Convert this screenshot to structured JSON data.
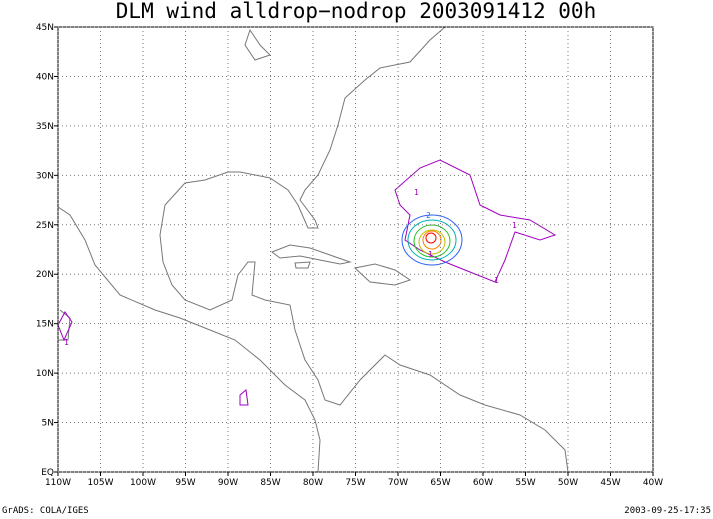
{
  "map": {
    "title": "DLM wind alldrop−nodrop 2003091412 00h",
    "xlim": [
      -110,
      -40
    ],
    "ylim": [
      0,
      45
    ],
    "xticks": [
      {
        "value": -110,
        "label": "110W"
      },
      {
        "value": -105,
        "label": "105W"
      },
      {
        "value": -100,
        "label": "100W"
      },
      {
        "value": -95,
        "label": "95W"
      },
      {
        "value": -90,
        "label": "90W"
      },
      {
        "value": -85,
        "label": "85W"
      },
      {
        "value": -80,
        "label": "80W"
      },
      {
        "value": -75,
        "label": "75W"
      },
      {
        "value": -70,
        "label": "70W"
      },
      {
        "value": -65,
        "label": "65W"
      },
      {
        "value": -60,
        "label": "60W"
      },
      {
        "value": -55,
        "label": "55W"
      },
      {
        "value": -50,
        "label": "50W"
      },
      {
        "value": -45,
        "label": "45W"
      },
      {
        "value": -40,
        "label": "40W"
      }
    ],
    "yticks": [
      {
        "value": 0,
        "label": "EQ"
      },
      {
        "value": 5,
        "label": "5N"
      },
      {
        "value": 10,
        "label": "10N"
      },
      {
        "value": 15,
        "label": "15N"
      },
      {
        "value": 20,
        "label": "20N"
      },
      {
        "value": 25,
        "label": "25N"
      },
      {
        "value": 30,
        "label": "30N"
      },
      {
        "value": 35,
        "label": "35N"
      },
      {
        "value": 40,
        "label": "40N"
      },
      {
        "value": 45,
        "label": "45N"
      }
    ],
    "grid": true,
    "contour_labels": [
      "1",
      "1",
      "1",
      "1",
      "1",
      "2"
    ]
  },
  "footer": {
    "left": "GrADS: COLA/IGES",
    "right": "2003-09-25-17:35"
  }
}
